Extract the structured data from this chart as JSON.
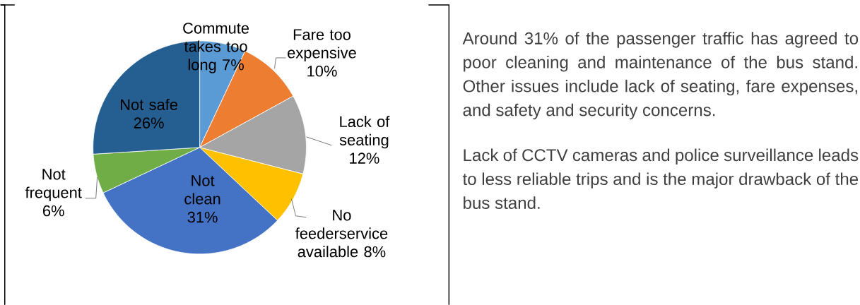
{
  "chart_data": {
    "type": "pie",
    "categories": [
      "Commute takes too long",
      "Fare too expensive",
      "Lack of seating",
      "No feederservice available",
      "Not clean",
      "Not frequent",
      "Not safe"
    ],
    "values": [
      7,
      10,
      12,
      8,
      31,
      6,
      26
    ],
    "value_labels": [
      "7%",
      "10%",
      "12%",
      "8%",
      "31%",
      "6%",
      "26%"
    ],
    "colors": [
      "#5b9bd5",
      "#ed7d31",
      "#a5a5a5",
      "#ffc000",
      "#4472c4",
      "#70ad47",
      "#255e91"
    ],
    "annotations": [
      "Around 31% of the passenger traffic has agreed to poor cleaning and maintenance of the bus stand. Other issues include lack of seating, fare expenses, and safety and security concerns.",
      "Lack of CCTV cameras and police surveillance leads to less reliable trips and is the major drawback of the bus stand."
    ]
  }
}
